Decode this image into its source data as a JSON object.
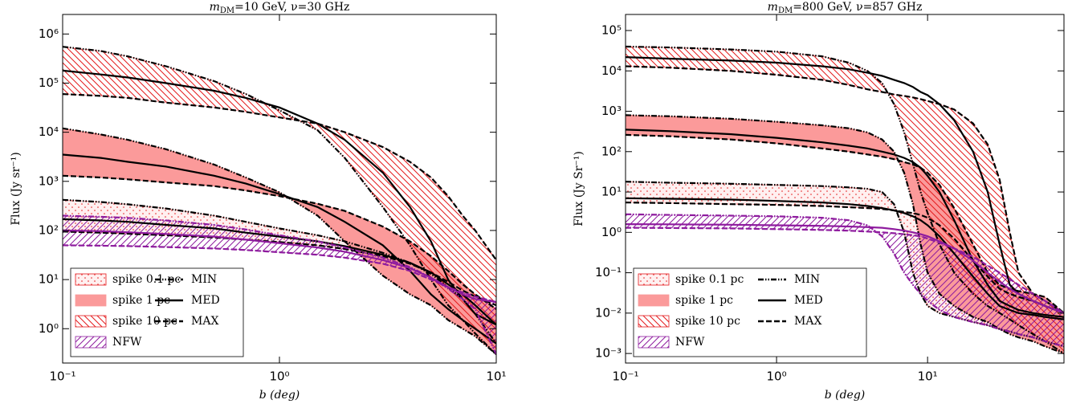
{
  "chart_data": [
    {
      "type": "line",
      "title_symbol": "m",
      "title_subscript": "DM",
      "title_rest": "=10 GeV, ν=30 GHz",
      "xlabel": "b (deg)",
      "ylabel": "Flux (Jy sr⁻¹)",
      "log_x": true,
      "log_y": true,
      "legend": "lower left",
      "xlim": [
        0.1,
        10
      ],
      "ylim": [
        0.2,
        2500000
      ],
      "xticks": [
        {
          "value": 0.1,
          "label": "10⁻¹"
        },
        {
          "value": 1,
          "label": "10⁰"
        },
        {
          "value": 10,
          "label": "10¹"
        }
      ],
      "yticks": [
        {
          "value": 1,
          "label": "10⁰"
        },
        {
          "value": 10,
          "label": "10¹"
        },
        {
          "value": 100,
          "label": "10²"
        },
        {
          "value": 1000,
          "label": "10³"
        },
        {
          "value": 10000,
          "label": "10⁴"
        },
        {
          "value": 100000,
          "label": "10⁵"
        },
        {
          "value": 1000000,
          "label": "10⁶"
        }
      ],
      "curve_names": [
        "MIN",
        "MED",
        "MAX"
      ],
      "x": [
        0.1,
        0.15,
        0.2,
        0.3,
        0.5,
        0.7,
        1,
        1.5,
        2,
        3,
        4,
        5,
        6,
        7,
        8,
        10
      ],
      "series": [
        {
          "name": "spike 0.1 pc",
          "color": "#e41a1c",
          "fill": "dots",
          "line_color": "#000000",
          "curves": [
            [
              420,
              380,
              340,
              280,
              200,
              150,
              110,
              80,
              60,
              35,
              22,
              13,
              7,
              4,
              2,
              0.5
            ],
            [
              170,
              160,
              150,
              130,
              110,
              90,
              75,
              60,
              48,
              32,
              22,
              14,
              8,
              5,
              3,
              1.2
            ],
            [
              95,
              90,
              86,
              80,
              72,
              65,
              58,
              50,
              42,
              30,
              21,
              14,
              9,
              6,
              4.5,
              3
            ]
          ]
        },
        {
          "name": "spike 1 pc",
          "color": "#fb9a9a",
          "fill": "solid",
          "line_color": "#000000",
          "curves": [
            [
              12000,
              9000,
              7000,
              4500,
              2200,
              1200,
              600,
              200,
              60,
              12,
              5,
              3,
              1.5,
              1,
              0.7,
              0.3
            ],
            [
              3500,
              3000,
              2500,
              2000,
              1300,
              900,
              550,
              300,
              150,
              50,
              15,
              5,
              2.5,
              1.5,
              1,
              0.5
            ],
            [
              1300,
              1200,
              1100,
              950,
              800,
              650,
              500,
              350,
              250,
              120,
              60,
              30,
              15,
              8,
              5,
              2.5
            ]
          ]
        },
        {
          "name": "spike 10 pc",
          "color": "#e41a1c",
          "fill": "hatch-back",
          "line_color": "#000000",
          "curves": [
            [
              550000,
              450000,
              350000,
              220000,
              110000,
              60000,
              28000,
              11000,
              3000,
              300,
              50,
              10,
              3,
              1.5,
              0.8,
              0.3
            ],
            [
              180000,
              150000,
              130000,
              100000,
              70000,
              50000,
              32000,
              15000,
              7000,
              1500,
              300,
              60,
              10,
              4,
              2,
              1.2
            ],
            [
              60000,
              55000,
              50000,
              40000,
              32000,
              26000,
              20000,
              15000,
              10000,
              5000,
              2500,
              1200,
              500,
              200,
              100,
              25
            ]
          ]
        },
        {
          "name": "NFW",
          "color": "#8e1b9e",
          "fill": "hatch-fwd",
          "line_color": "#8e1b9e",
          "curves": [
            [
              200,
              190,
              180,
              160,
              130,
              105,
              80,
              60,
              45,
              28,
              18,
              11,
              6.5,
              4,
              2.5,
              0.3
            ],
            [
              100,
              97,
              92,
              85,
              75,
              65,
              55,
              45,
              37,
              25,
              17,
              11,
              7,
              5,
              4,
              3.5
            ],
            [
              50,
              49,
              48,
              46,
              43,
              40,
              36,
              32,
              28,
              21,
              15,
              10,
              7,
              5.5,
              4.5,
              3.5
            ]
          ]
        }
      ]
    },
    {
      "type": "line",
      "title_symbol": "m",
      "title_subscript": "DM",
      "title_rest": "=800 GeV, ν=857 GHz",
      "xlabel": "b (deg)",
      "ylabel": "Flux (Jy Sr⁻¹)",
      "log_x": true,
      "log_y": true,
      "legend": "lower left",
      "xlim": [
        0.1,
        80
      ],
      "ylim": [
        0.00058,
        250000
      ],
      "xticks": [
        {
          "value": 0.1,
          "label": "10⁻¹"
        },
        {
          "value": 1,
          "label": "10⁰"
        },
        {
          "value": 10,
          "label": "10¹"
        }
      ],
      "yticks": [
        {
          "value": 0.001,
          "label": "10⁻³"
        },
        {
          "value": 0.01,
          "label": "10⁻²"
        },
        {
          "value": 0.1,
          "label": "10⁻¹"
        },
        {
          "value": 1,
          "label": "10⁰"
        },
        {
          "value": 10,
          "label": "10¹"
        },
        {
          "value": 100,
          "label": "10²"
        },
        {
          "value": 1000,
          "label": "10³"
        },
        {
          "value": 10000,
          "label": "10⁴"
        },
        {
          "value": 100000,
          "label": "10⁵"
        }
      ],
      "curve_names": [
        "MIN",
        "MED",
        "MAX"
      ],
      "x": [
        0.1,
        0.2,
        0.5,
        1,
        2,
        3,
        4,
        5,
        6,
        7,
        8,
        9,
        10,
        12,
        15,
        20,
        25,
        30,
        35,
        40,
        50,
        60,
        80
      ],
      "series": [
        {
          "name": "spike 0.1 pc",
          "color": "#e41a1c",
          "fill": "dots",
          "line_color": "#000000",
          "curves": [
            [
              18,
              17,
              16,
              15,
              14,
              13,
              12,
              10,
              5,
              1,
              0.1,
              0.03,
              0.015,
              0.01,
              0.008,
              0.006,
              0.005,
              0.004,
              0.0035,
              0.003,
              0.0025,
              0.002,
              0.0015
            ],
            [
              7,
              6.8,
              6.5,
              6,
              5.5,
              5,
              4.5,
              4,
              3.5,
              3,
              2.5,
              2,
              1.5,
              0.8,
              0.3,
              0.08,
              0.03,
              0.015,
              0.012,
              0.01,
              0.009,
              0.008,
              0.007
            ],
            [
              5.5,
              5.3,
              5,
              4.8,
              4.5,
              4.2,
              4,
              3.8,
              3.5,
              3.2,
              3,
              2.7,
              2.3,
              1.5,
              0.7,
              0.2,
              0.08,
              0.04,
              0.03,
              0.025,
              0.02,
              0.015,
              0.01
            ]
          ]
        },
        {
          "name": "spike 1 pc",
          "color": "#fb9a9a",
          "fill": "solid",
          "line_color": "#000000",
          "curves": [
            [
              800,
              750,
              650,
              550,
              450,
              380,
              300,
              200,
              100,
              30,
              5,
              0.5,
              0.1,
              0.03,
              0.015,
              0.008,
              0.006,
              0.004,
              0.003,
              0.0025,
              0.002,
              0.0015,
              0.001
            ],
            [
              350,
              320,
              270,
              220,
              170,
              140,
              120,
              100,
              85,
              70,
              55,
              40,
              25,
              10,
              2,
              0.2,
              0.05,
              0.02,
              0.015,
              0.012,
              0.01,
              0.009,
              0.008
            ],
            [
              260,
              240,
              200,
              160,
              120,
              100,
              85,
              75,
              65,
              55,
              48,
              40,
              30,
              15,
              4,
              0.5,
              0.1,
              0.05,
              0.04,
              0.035,
              0.03,
              0.025,
              0.01
            ]
          ]
        },
        {
          "name": "spike 10 pc",
          "color": "#e41a1c",
          "fill": "hatch-back",
          "line_color": "#000000",
          "curves": [
            [
              40000,
              38000,
              34000,
              30000,
              23000,
              16000,
              10000,
              5000,
              1500,
              300,
              50,
              10,
              3,
              0.5,
              0.1,
              0.03,
              0.015,
              0.01,
              0.007,
              0.005,
              0.003,
              0.002,
              0.001
            ],
            [
              22000,
              20000,
              18000,
              16000,
              13000,
              11000,
              9000,
              7500,
              6000,
              5000,
              4000,
              3000,
              2500,
              1500,
              600,
              100,
              10,
              0.5,
              0.05,
              0.03,
              0.02,
              0.015,
              0.01
            ],
            [
              13000,
              12000,
              10000,
              8000,
              6000,
              4500,
              3500,
              3000,
              2600,
              2400,
              2200,
              2000,
              1800,
              1500,
              1100,
              500,
              150,
              20,
              1,
              0.1,
              0.03,
              0.02,
              0.01
            ]
          ]
        },
        {
          "name": "NFW",
          "color": "#8e1b9e",
          "fill": "hatch-fwd",
          "line_color": "#8e1b9e",
          "curves": [
            [
              2.8,
              2.7,
              2.6,
              2.5,
              2.3,
              2,
              1.5,
              0.8,
              0.3,
              0.1,
              0.05,
              0.03,
              0.02,
              0.012,
              0.008,
              0.006,
              0.005,
              0.004,
              0.0035,
              0.003,
              0.0025,
              0.002,
              0.0015
            ],
            [
              1.6,
              1.58,
              1.55,
              1.5,
              1.45,
              1.4,
              1.35,
              1.3,
              1.2,
              1.1,
              1,
              0.9,
              0.8,
              0.6,
              0.4,
              0.2,
              0.1,
              0.06,
              0.04,
              0.03,
              0.02,
              0.015,
              0.01
            ],
            [
              1.3,
              1.28,
              1.25,
              1.2,
              1.15,
              1.1,
              1.05,
              1,
              0.95,
              0.9,
              0.85,
              0.8,
              0.7,
              0.55,
              0.4,
              0.25,
              0.15,
              0.1,
              0.07,
              0.05,
              0.03,
              0.02,
              0.01
            ]
          ]
        }
      ]
    }
  ]
}
